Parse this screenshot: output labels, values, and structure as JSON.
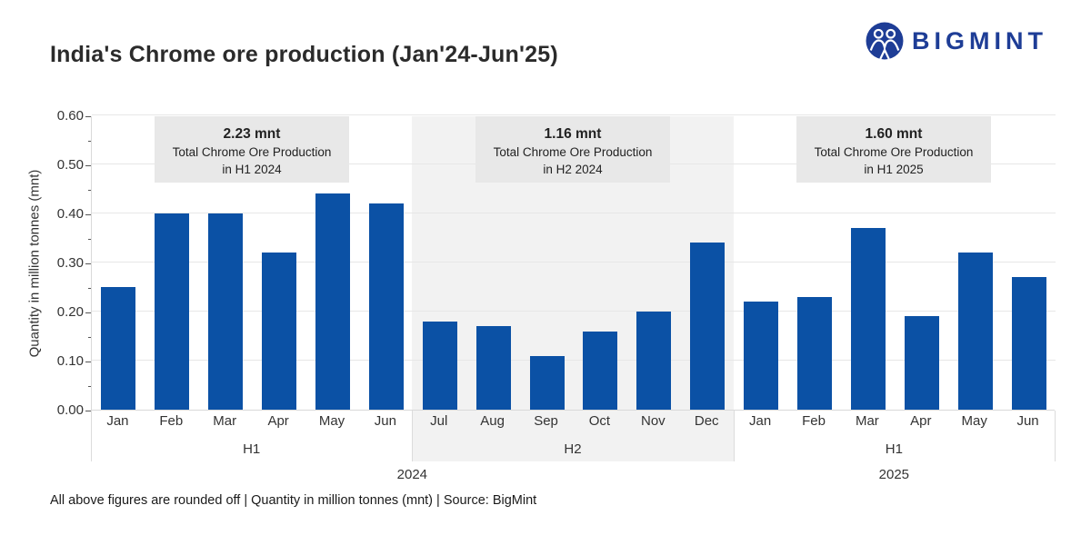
{
  "header": {
    "title": "India's Chrome ore production (Jan'24-Jun'25)",
    "brand": {
      "name": "BIGMINT",
      "color": "#1e3d96"
    }
  },
  "chart_data": {
    "type": "bar",
    "title": "India's Chrome ore production (Jan'24-Jun'25)",
    "xlabel": "",
    "ylabel": "Quantity in million tonnes (mnt)",
    "ylim": [
      0,
      0.6
    ],
    "y_ticks": [
      "0.60",
      "0.50",
      "0.40",
      "0.30",
      "0.20",
      "0.10",
      "0.00"
    ],
    "grid": true,
    "bar_color": "#0b51a5",
    "shaded_band_color": "#f2f2f2",
    "groups": [
      {
        "label": "H1",
        "year": "2024",
        "shaded": false,
        "categories": [
          "Jan",
          "Feb",
          "Mar",
          "Apr",
          "May",
          "Jun"
        ],
        "values": [
          0.25,
          0.4,
          0.4,
          0.32,
          0.44,
          0.42
        ],
        "annotation": {
          "value": "2.23 mnt",
          "line1": "Total Chrome Ore Production",
          "line2": "in H1 2024"
        }
      },
      {
        "label": "H2",
        "year": "2024",
        "shaded": true,
        "categories": [
          "Jul",
          "Aug",
          "Sep",
          "Oct",
          "Nov",
          "Dec"
        ],
        "values": [
          0.18,
          0.17,
          0.11,
          0.16,
          0.2,
          0.34
        ],
        "annotation": {
          "value": "1.16 mnt",
          "line1": "Total Chrome Ore Production",
          "line2": "in H2 2024"
        }
      },
      {
        "label": "H1",
        "year": "2025",
        "shaded": false,
        "categories": [
          "Jan",
          "Feb",
          "Mar",
          "Apr",
          "May",
          "Jun"
        ],
        "values": [
          0.22,
          0.23,
          0.37,
          0.19,
          0.32,
          0.27
        ],
        "annotation": {
          "value": "1.60 mnt",
          "line1": "Total Chrome Ore Production",
          "line2": "in H1 2025"
        }
      }
    ]
  },
  "footer": {
    "note": "All above figures are rounded off | Quantity in million tonnes (mnt) | Source: BigMint"
  }
}
